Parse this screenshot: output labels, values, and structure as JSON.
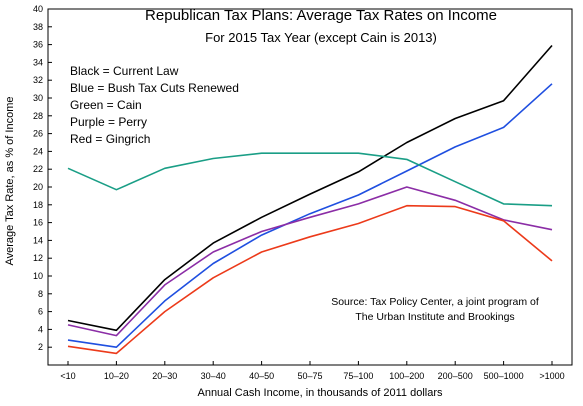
{
  "chart_data": {
    "type": "line",
    "title": "Republican Tax Plans:  Average Tax Rates on Income",
    "subtitle": "For 2015 Tax Year (except Cain is 2013)",
    "xlabel": "Annual Cash Income, in thousands of 2011 dollars",
    "ylabel": "Average Tax Rate,  as % of Income",
    "ylim": [
      0,
      40
    ],
    "yticks": [
      2,
      4,
      6,
      8,
      10,
      12,
      14,
      16,
      18,
      20,
      22,
      24,
      26,
      28,
      30,
      32,
      34,
      36,
      38,
      40
    ],
    "categories": [
      "<10",
      "10–20",
      "20–30",
      "30–40",
      "40–50",
      "50–75",
      "75–100",
      "100–200",
      "200–500",
      "500–1000",
      ">1000"
    ],
    "grid": false,
    "series": [
      {
        "key": "current",
        "color": "#000000",
        "values": [
          5.0,
          3.9,
          9.6,
          13.7,
          16.6,
          19.2,
          21.7,
          25.0,
          27.7,
          29.7,
          35.9
        ]
      },
      {
        "key": "bush",
        "color": "#1f4fe0",
        "values": [
          2.8,
          2.0,
          7.2,
          11.4,
          14.6,
          17.0,
          19.1,
          21.8,
          24.5,
          26.7,
          31.6
        ]
      },
      {
        "key": "cain",
        "color": "#1a9e86",
        "values": [
          22.1,
          19.7,
          22.1,
          23.2,
          23.8,
          23.8,
          23.8,
          23.1,
          20.6,
          18.1,
          17.9
        ]
      },
      {
        "key": "perry",
        "color": "#8b2da6",
        "values": [
          4.5,
          3.3,
          9.0,
          12.7,
          15.0,
          16.6,
          18.1,
          20.0,
          18.5,
          16.3,
          15.2
        ]
      },
      {
        "key": "gingrich",
        "color": "#ec3a1a",
        "values": [
          2.1,
          1.3,
          6.0,
          9.8,
          12.7,
          14.4,
          15.9,
          17.9,
          17.8,
          16.2,
          11.7
        ]
      }
    ],
    "legend": {
      "placement": "top-left",
      "entries": [
        {
          "text": "Black = Current Law",
          "color": "#000000"
        },
        {
          "text": "Blue = Bush Tax Cuts Renewed",
          "color": "#1f4fe0"
        },
        {
          "text": "Green = Cain",
          "color": "#1a9e86"
        },
        {
          "text": "Purple = Perry",
          "color": "#8b2da6"
        },
        {
          "text": "Red = Gingrich",
          "color": "#ec3a1a"
        }
      ]
    },
    "annotation": {
      "line1": "Source:  Tax Policy Center, a joint program of",
      "line2": "The Urban Institute and Brookings"
    }
  }
}
